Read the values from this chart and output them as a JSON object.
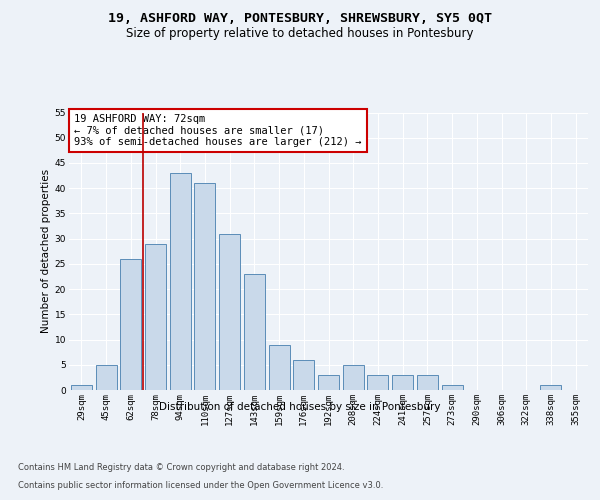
{
  "title_line1": "19, ASHFORD WAY, PONTESBURY, SHREWSBURY, SY5 0QT",
  "title_line2": "Size of property relative to detached houses in Pontesbury",
  "xlabel": "Distribution of detached houses by size in Pontesbury",
  "ylabel": "Number of detached properties",
  "bar_labels": [
    "29sqm",
    "45sqm",
    "62sqm",
    "78sqm",
    "94sqm",
    "110sqm",
    "127sqm",
    "143sqm",
    "159sqm",
    "176sqm",
    "192sqm",
    "208sqm",
    "224sqm",
    "241sqm",
    "257sqm",
    "273sqm",
    "290sqm",
    "306sqm",
    "322sqm",
    "338sqm",
    "355sqm"
  ],
  "bar_values": [
    1,
    5,
    26,
    29,
    43,
    41,
    31,
    23,
    9,
    6,
    3,
    5,
    3,
    3,
    3,
    1,
    0,
    0,
    0,
    1,
    0
  ],
  "bar_color": "#c9d9ea",
  "bar_edge_color": "#5b8db8",
  "subject_line_idx": 2,
  "annotation_text": "19 ASHFORD WAY: 72sqm\n← 7% of detached houses are smaller (17)\n93% of semi-detached houses are larger (212) →",
  "annotation_box_color": "#ffffff",
  "annotation_box_edge_color": "#cc0000",
  "ylim": [
    0,
    55
  ],
  "yticks": [
    0,
    5,
    10,
    15,
    20,
    25,
    30,
    35,
    40,
    45,
    50,
    55
  ],
  "footer_line1": "Contains HM Land Registry data © Crown copyright and database right 2024.",
  "footer_line2": "Contains public sector information licensed under the Open Government Licence v3.0.",
  "bg_color": "#edf2f8",
  "plot_bg_color": "#edf2f8",
  "grid_color": "#ffffff",
  "title_fontsize": 9.5,
  "subtitle_fontsize": 8.5,
  "axis_label_fontsize": 7.5,
  "tick_fontsize": 6.5,
  "annotation_fontsize": 7.5,
  "footer_fontsize": 6.0,
  "vline_color": "#bb0000"
}
